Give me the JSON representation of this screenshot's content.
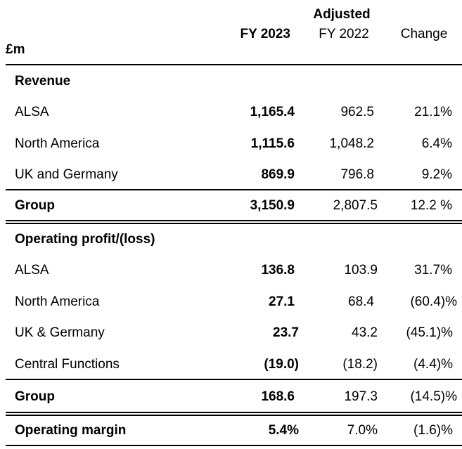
{
  "header": {
    "unit_label": "£m",
    "col1": "FY 2023",
    "col2_top": "Adjusted",
    "col2": "FY 2022",
    "col3": "Change"
  },
  "revenue": {
    "section_title": "Revenue",
    "rows": [
      {
        "label": "ALSA",
        "fy2023": "1,165.4",
        "fy2022": "962.5",
        "change": "21.1%"
      },
      {
        "label": "North America",
        "fy2023": "1,115.6",
        "fy2022": "1,048.2",
        "change": "6.4%"
      },
      {
        "label": "UK and Germany",
        "fy2023": "869.9",
        "fy2022": "796.8",
        "change": "9.2%"
      }
    ],
    "total": {
      "label": "Group",
      "fy2023": "3,150.9",
      "fy2022": "2,807.5",
      "change": "12.2 %"
    }
  },
  "operating": {
    "section_title": "Operating profit/(loss)",
    "rows": [
      {
        "label": "ALSA",
        "fy2023": "136.8",
        "fy2022": "103.9",
        "change": "31.7%"
      },
      {
        "label": "North America",
        "fy2023": "27.1",
        "fy2022": "68.4",
        "change": "(60.4)%"
      },
      {
        "label": "UK & Germany",
        "fy2023": "23.7",
        "fy2022": "43.2",
        "change": "(45.1)%"
      },
      {
        "label": "Central Functions",
        "fy2023": "(19.0)",
        "fy2022": "(18.2)",
        "change": "(4.4)%"
      }
    ],
    "total": {
      "label": "Group",
      "fy2023": "168.6",
      "fy2022": "197.3",
      "change": "(14.5)%"
    }
  },
  "margin": {
    "label": "Operating margin",
    "fy2023": "5.4%",
    "fy2022": "7.0%",
    "change": "(1.6)%"
  }
}
